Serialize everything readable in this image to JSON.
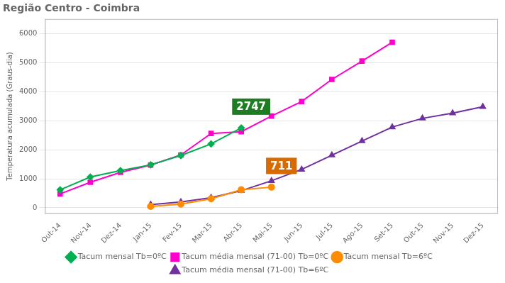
{
  "chart_data": {
    "type": "line",
    "title": "Região Centro - Coimbra",
    "ylabel": "Temperatura acumulada (Graus-dia)",
    "categories": [
      "Out-14",
      "Nov-14",
      "Dez-14",
      "Jan-15",
      "Fev-15",
      "Mar-15",
      "Abr-15",
      "Mai-15",
      "Jun-15",
      "Jul-15",
      "Ago-15",
      "Set-15",
      "Out-15",
      "Nov-15",
      "Dez-15"
    ],
    "series": [
      {
        "name": "Tacum mensal Tb=0ºC",
        "color": "#00b050",
        "marker": "diamond",
        "values": [
          620,
          1060,
          1280,
          1480,
          1800,
          2200,
          2750,
          null,
          null,
          null,
          null,
          null,
          null,
          null,
          null
        ]
      },
      {
        "name": "Tacum média mensal (71-00) Tb=0ºC",
        "color": "#ff00cc",
        "marker": "square",
        "values": [
          480,
          880,
          1220,
          1470,
          1820,
          2560,
          2620,
          3160,
          3660,
          4420,
          5050,
          5700,
          null,
          null,
          null
        ]
      },
      {
        "name": "Tacum mensal Tb=6ºC",
        "color": "#ff8c00",
        "marker": "circle",
        "values": [
          null,
          null,
          null,
          50,
          130,
          310,
          620,
          711,
          null,
          null,
          null,
          null,
          null,
          null,
          null
        ]
      },
      {
        "name": "Tacum média mensal (71-00) Tb=6ºC",
        "color": "#7030a0",
        "marker": "triangle",
        "values": [
          null,
          null,
          null,
          110,
          200,
          350,
          590,
          930,
          1320,
          1810,
          2300,
          2780,
          3080,
          3260,
          3480
        ]
      }
    ],
    "annotations": [
      {
        "text": "2747",
        "color": "#1e7d22",
        "series": "Tacum mensal Tb=0ºC"
      },
      {
        "text": "711",
        "color": "#d96a00",
        "series": "Tacum mensal Tb=6ºC"
      }
    ],
    "ylim": [
      -200,
      6500
    ],
    "yticks": [
      0,
      1000,
      2000,
      3000,
      4000,
      5000,
      6000
    ],
    "grid": true,
    "legend": "bottom"
  }
}
